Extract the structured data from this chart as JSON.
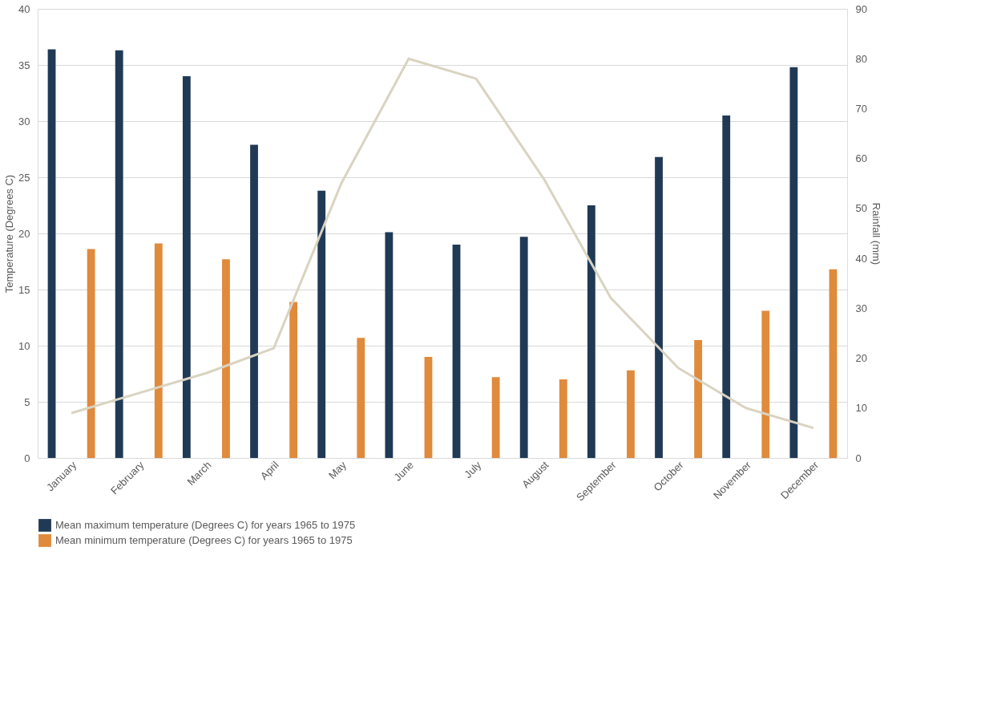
{
  "chart_data": {
    "type": "bar",
    "ylabel": "Temperature (Degrees C)",
    "y2label": "Rainfall (mm)",
    "categories": [
      "January",
      "February",
      "March",
      "April",
      "May",
      "June",
      "July",
      "August",
      "September",
      "October",
      "November",
      "December"
    ],
    "series": [
      {
        "name": "Mean maximum temperature (Degrees C) for years 1965 to 1975",
        "color": "#203a56",
        "values": [
          36.4,
          36.3,
          34.0,
          27.9,
          23.8,
          20.1,
          19.0,
          19.7,
          22.5,
          26.8,
          30.5,
          34.8
        ]
      },
      {
        "name": "Mean minimum temperature (Degrees C) for years 1965 to 1975",
        "color": "#e08a3c",
        "values": [
          18.6,
          19.1,
          17.7,
          13.9,
          10.7,
          9.0,
          7.2,
          7.0,
          7.8,
          10.5,
          13.1,
          16.8
        ]
      },
      {
        "type": "line",
        "axis": "y2",
        "color": "#d9d3c1",
        "values": [
          9,
          13,
          17,
          22,
          55,
          80,
          76,
          56,
          32,
          18,
          10,
          6
        ]
      }
    ],
    "ylim": [
      0,
      40
    ],
    "yticks": [
      0,
      5,
      10,
      15,
      20,
      25,
      30,
      35,
      40
    ],
    "y2lim": [
      0,
      90
    ],
    "y2ticks": [
      0,
      10,
      20,
      30,
      40,
      50,
      60,
      70,
      80,
      90
    ],
    "grid": "y",
    "legend": "bottom",
    "marker": "none",
    "line_style": "solid"
  }
}
